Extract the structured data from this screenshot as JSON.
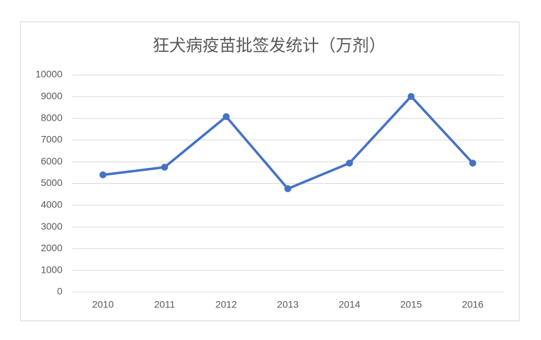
{
  "chart_data": {
    "type": "line",
    "title": "狂犬病疫苗批签发统计（万剂）",
    "categories": [
      "2010",
      "2011",
      "2012",
      "2013",
      "2014",
      "2015",
      "2016"
    ],
    "series": [
      {
        "name": "狂犬病疫苗批签发",
        "color": "#4472c4",
        "values": [
          5400,
          5750,
          8080,
          4760,
          5940,
          9010,
          5940
        ]
      }
    ],
    "ylim": [
      0,
      10000
    ],
    "yticks": [
      0,
      1000,
      2000,
      3000,
      4000,
      5000,
      6000,
      7000,
      8000,
      9000,
      10000
    ],
    "grid": true
  }
}
